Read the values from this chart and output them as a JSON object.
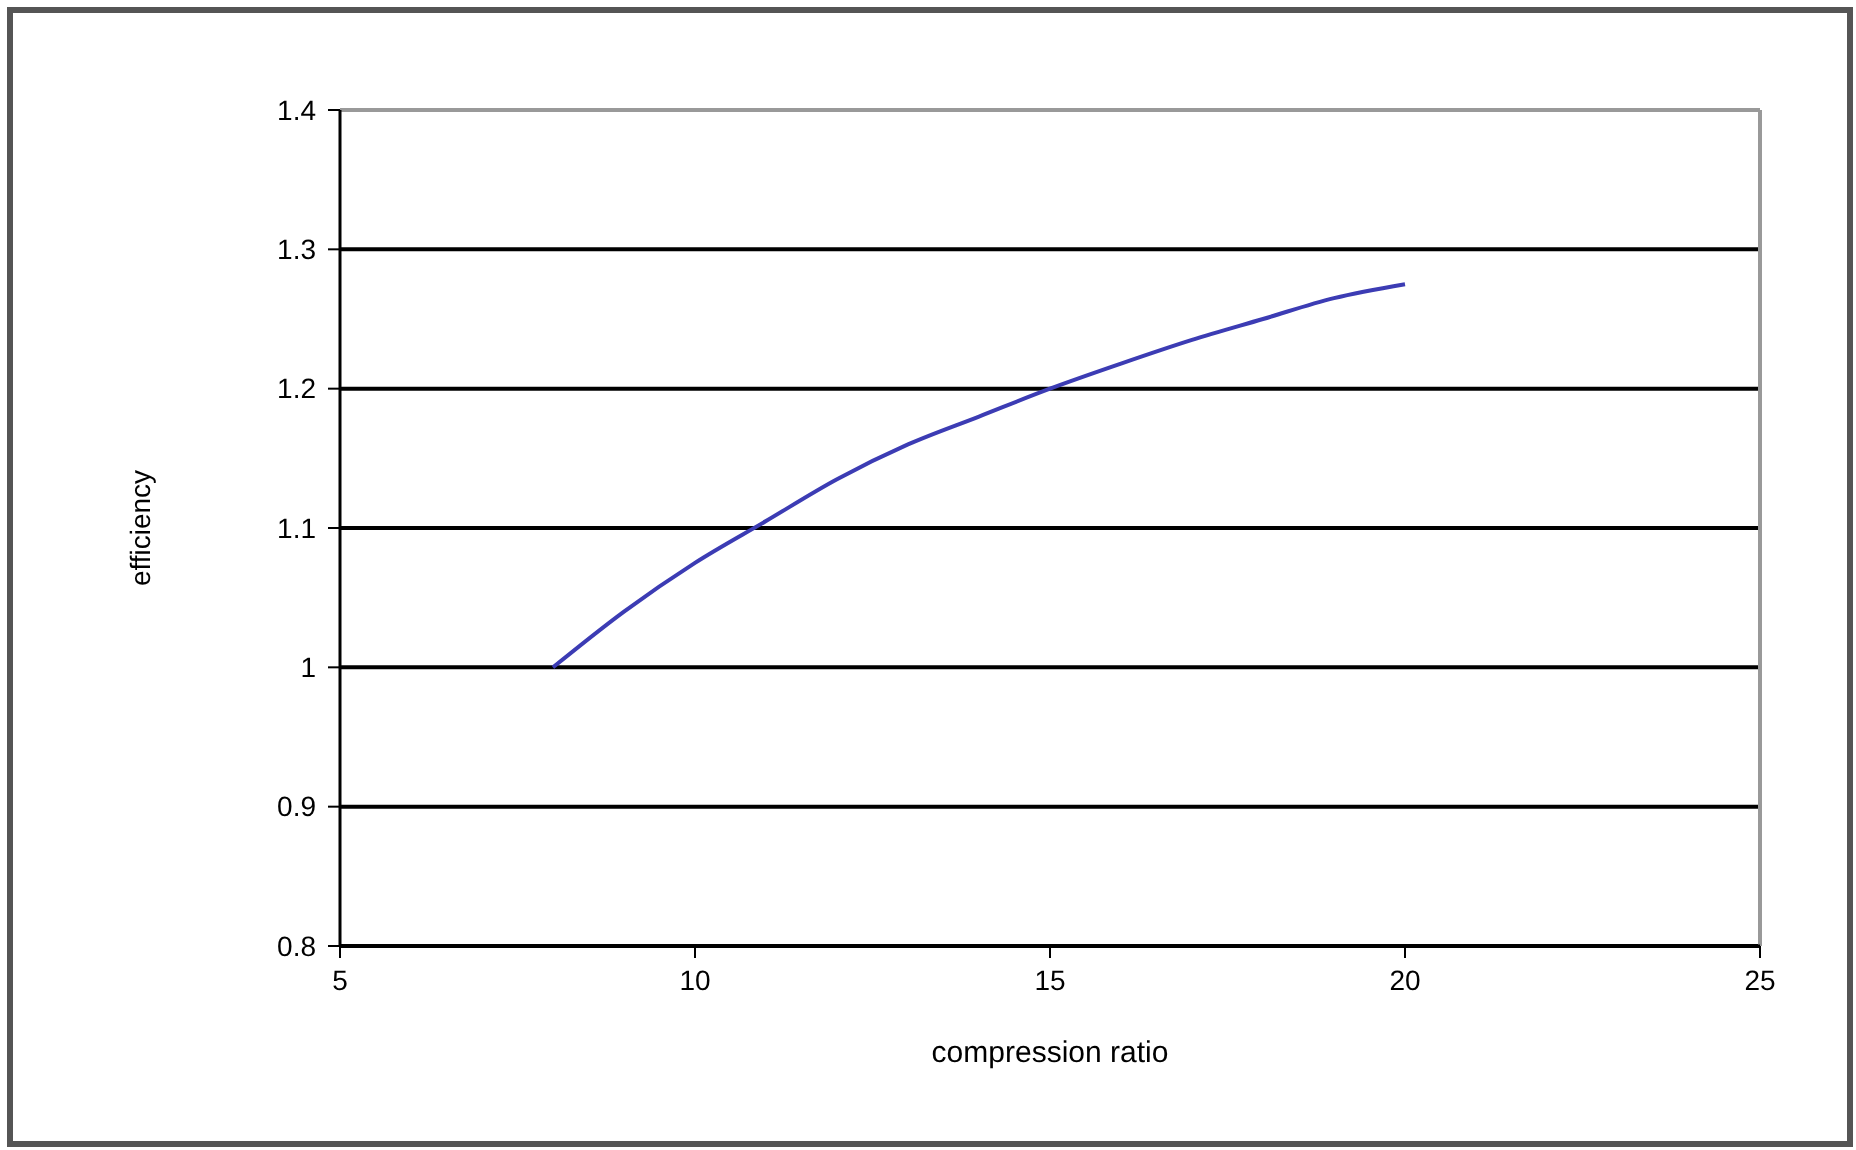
{
  "chart_data": {
    "type": "line",
    "xlabel": "compression ratio",
    "ylabel": "efficiency",
    "x": [
      8,
      9,
      10,
      11,
      12,
      13,
      14,
      15,
      16,
      17,
      18,
      19,
      20
    ],
    "series": [
      {
        "color": "#3c3cb4",
        "values": [
          1.0,
          1.04,
          1.075,
          1.105,
          1.135,
          1.16,
          1.18,
          1.2,
          1.218,
          1.235,
          1.25,
          1.265,
          1.275
        ]
      }
    ],
    "xlim": [
      5,
      25
    ],
    "xticks": [
      5,
      10,
      15,
      20,
      25
    ],
    "ylim": [
      0.8,
      1.4
    ],
    "yticks": [
      0.8,
      0.9,
      1,
      1.1,
      1.2,
      1.3,
      1.4
    ],
    "grid": "y",
    "marker": "none",
    "line_style": "solid"
  }
}
